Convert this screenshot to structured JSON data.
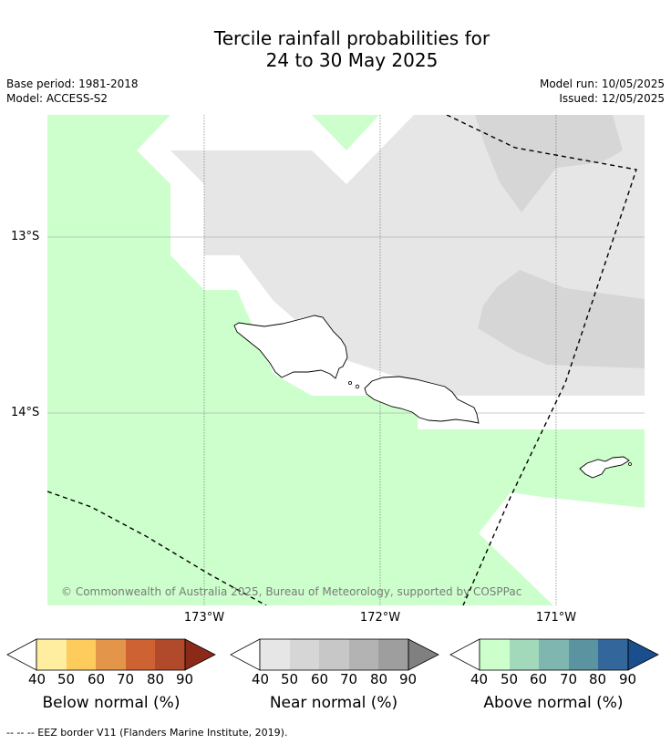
{
  "header": {
    "title_line1": "Tercile rainfall probabilities for",
    "title_line2": "24 to 30 May 2025",
    "base_period": "Base period: 1981-2018",
    "model": "Model: ACCESS-S2",
    "model_run": "Model run: 10/05/2025",
    "issued": "Issued: 12/05/2025"
  },
  "map": {
    "lat_labels": [
      "13°S",
      "14°S"
    ],
    "lon_labels": [
      "173°W",
      "172°W",
      "171°W"
    ],
    "copyright": "© Commonwealth of Australia 2025, Bureau of Meteorology, supported by COSPPac",
    "colors": {
      "above_40_50": "#ccffcc",
      "near_40_50": "#e6e6e6",
      "near_50_60": "#d6d6d6",
      "land_outline": "#000000",
      "eez": "#000000",
      "grid": "#999999"
    }
  },
  "legend": {
    "ticks": [
      "40",
      "50",
      "60",
      "70",
      "80",
      "90"
    ],
    "below": {
      "title": "Below normal (%)",
      "colors": [
        "#ffeda0",
        "#fecc5c",
        "#e3964a",
        "#cf6232",
        "#b04a2a",
        "#8c2a1a"
      ]
    },
    "near": {
      "title": "Near normal (%)",
      "colors": [
        "#e6e6e6",
        "#d6d6d6",
        "#c7c7c7",
        "#b3b3b3",
        "#9e9e9e",
        "#808080"
      ]
    },
    "above": {
      "title": "Above normal (%)",
      "colors": [
        "#ccffcc",
        "#a3d9bb",
        "#80b6b0",
        "#5b94a0",
        "#33679b",
        "#1a4e8c"
      ]
    }
  },
  "footer": "--  --  -- EEZ border V11 (Flanders Marine Institute, 2019)."
}
